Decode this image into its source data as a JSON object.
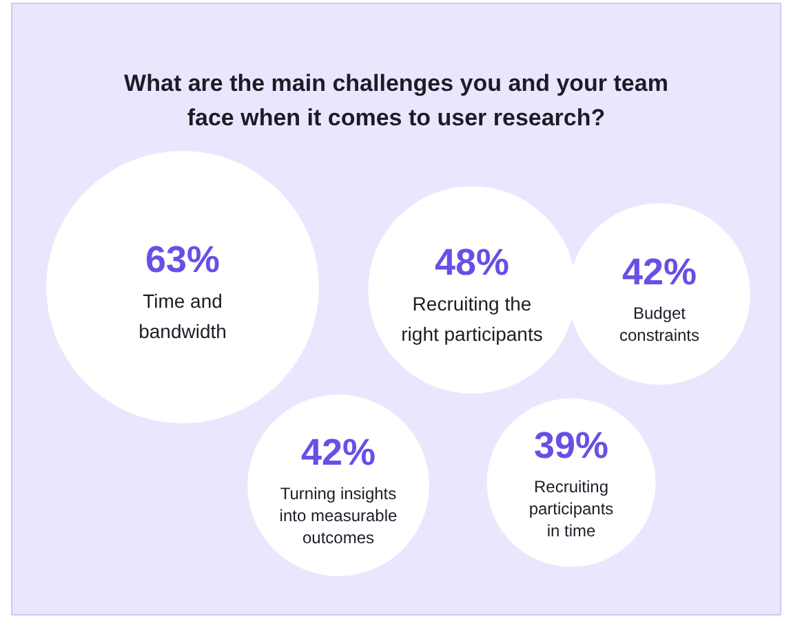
{
  "chart_data": {
    "type": "other",
    "title": "What are the main challenges you and your team face when it comes to user research?",
    "categories": [
      "Time and bandwidth",
      "Recruiting the right participants",
      "Budget constraints",
      "Turning insights into measurable outcomes",
      "Recruiting participants in time"
    ],
    "values": [
      63,
      48,
      42,
      42,
      39
    ],
    "value_labels": [
      "63%",
      "48%",
      "42%",
      "42%",
      "39%"
    ],
    "color": "#ffffff"
  }
}
